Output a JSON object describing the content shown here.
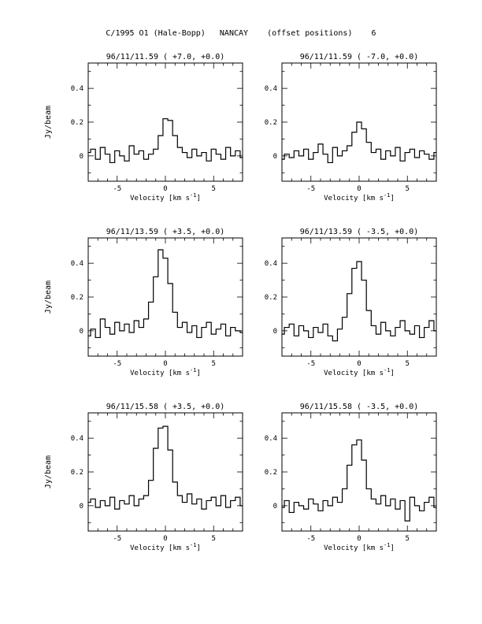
{
  "page": {
    "title": "C/1995 O1 (Hale-Bopp)   NANCAY    (offset positions)    6"
  },
  "chart_data": [
    {
      "type": "line",
      "title": "96/11/11.59  ( +7.0, +0.0)",
      "xlabel": "Velocity [km s",
      "xlabel_sup": "-1",
      "xlabel_end": "]",
      "ylabel": "Jy/beam",
      "xlim": [
        -8,
        8
      ],
      "ylim": [
        -0.15,
        0.55
      ],
      "xticks": [
        -5,
        0,
        5
      ],
      "yticks": [
        0,
        0.2,
        0.4
      ],
      "series": [
        {
          "x": [
            -8,
            -7.5,
            -7,
            -6.5,
            -6,
            -5.5,
            -5,
            -4.5,
            -4,
            -3.5,
            -3,
            -2.5,
            -2,
            -1.5,
            -1,
            -0.5,
            0,
            0.5,
            1,
            1.5,
            2,
            2.5,
            3,
            3.5,
            4,
            4.5,
            5,
            5.5,
            6,
            6.5,
            7,
            7.5,
            8
          ],
          "y": [
            0.02,
            0.04,
            -0.02,
            0.05,
            0.01,
            -0.04,
            0.03,
            0.0,
            -0.03,
            0.06,
            0.01,
            0.03,
            -0.02,
            0.01,
            0.04,
            0.12,
            0.22,
            0.21,
            0.12,
            0.05,
            0.02,
            -0.01,
            0.04,
            0.0,
            0.02,
            -0.03,
            0.04,
            0.01,
            -0.02,
            0.05,
            0.0,
            0.03,
            -0.01
          ]
        }
      ]
    },
    {
      "type": "line",
      "title": "96/11/11.59  ( -7.0, +0.0)",
      "xlabel": "Velocity [km s",
      "xlabel_sup": "-1",
      "xlabel_end": "]",
      "ylabel": "",
      "xlim": [
        -8,
        8
      ],
      "ylim": [
        -0.15,
        0.55
      ],
      "xticks": [
        -5,
        0,
        5
      ],
      "yticks": [
        0,
        0.2,
        0.4
      ],
      "series": [
        {
          "x": [
            -8,
            -7.5,
            -7,
            -6.5,
            -6,
            -5.5,
            -5,
            -4.5,
            -4,
            -3.5,
            -3,
            -2.5,
            -2,
            -1.5,
            -1,
            -0.5,
            0,
            0.5,
            1,
            1.5,
            2,
            2.5,
            3,
            3.5,
            4,
            4.5,
            5,
            5.5,
            6,
            6.5,
            7,
            7.5,
            8
          ],
          "y": [
            -0.02,
            0.01,
            -0.01,
            0.03,
            0.0,
            0.04,
            -0.02,
            0.02,
            0.07,
            0.01,
            -0.04,
            0.05,
            0.0,
            0.03,
            0.06,
            0.14,
            0.2,
            0.16,
            0.08,
            0.02,
            0.04,
            -0.02,
            0.03,
            0.0,
            0.05,
            -0.03,
            0.02,
            0.04,
            -0.01,
            0.03,
            0.01,
            -0.02,
            0.02
          ]
        }
      ]
    },
    {
      "type": "line",
      "title": "96/11/13.59  ( +3.5, +0.0)",
      "xlabel": "Velocity [km s",
      "xlabel_sup": "-1",
      "xlabel_end": "]",
      "ylabel": "Jy/beam",
      "xlim": [
        -8,
        8
      ],
      "ylim": [
        -0.15,
        0.55
      ],
      "xticks": [
        -5,
        0,
        5
      ],
      "yticks": [
        0,
        0.2,
        0.4
      ],
      "series": [
        {
          "x": [
            -8,
            -7.5,
            -7,
            -6.5,
            -6,
            -5.5,
            -5,
            -4.5,
            -4,
            -3.5,
            -3,
            -2.5,
            -2,
            -1.5,
            -1,
            -0.5,
            0,
            0.5,
            1,
            1.5,
            2,
            2.5,
            3,
            3.5,
            4,
            4.5,
            5,
            5.5,
            6,
            6.5,
            7,
            7.5,
            8
          ],
          "y": [
            -0.03,
            0.01,
            -0.04,
            0.07,
            0.02,
            -0.02,
            0.05,
            0.0,
            0.04,
            -0.01,
            0.06,
            0.02,
            0.07,
            0.17,
            0.32,
            0.48,
            0.43,
            0.28,
            0.11,
            0.02,
            0.05,
            -0.01,
            0.03,
            -0.04,
            0.02,
            0.05,
            -0.02,
            0.01,
            0.04,
            -0.03,
            0.02,
            0.0,
            -0.01
          ]
        }
      ]
    },
    {
      "type": "line",
      "title": "96/11/13.59  ( -3.5, +0.0)",
      "xlabel": "Velocity [km s",
      "xlabel_sup": "-1",
      "xlabel_end": "]",
      "ylabel": "",
      "xlim": [
        -8,
        8
      ],
      "ylim": [
        -0.15,
        0.55
      ],
      "xticks": [
        -5,
        0,
        5
      ],
      "yticks": [
        0,
        0.2,
        0.4
      ],
      "series": [
        {
          "x": [
            -8,
            -7.5,
            -7,
            -6.5,
            -6,
            -5.5,
            -5,
            -4.5,
            -4,
            -3.5,
            -3,
            -2.5,
            -2,
            -1.5,
            -1,
            -0.5,
            0,
            0.5,
            1,
            1.5,
            2,
            2.5,
            3,
            3.5,
            4,
            4.5,
            5,
            5.5,
            6,
            6.5,
            7,
            7.5,
            8
          ],
          "y": [
            -0.02,
            0.02,
            0.04,
            -0.03,
            0.03,
            0.0,
            -0.04,
            0.02,
            -0.01,
            0.04,
            -0.03,
            -0.06,
            0.01,
            0.08,
            0.22,
            0.37,
            0.41,
            0.3,
            0.12,
            0.03,
            -0.02,
            0.05,
            0.0,
            -0.03,
            0.02,
            0.06,
            0.0,
            -0.02,
            0.03,
            -0.04,
            0.02,
            0.06,
            0.0
          ]
        }
      ]
    },
    {
      "type": "line",
      "title": "96/11/15.58  ( +3.5, +0.0)",
      "xlabel": "Velocity [km s",
      "xlabel_sup": "-1",
      "xlabel_end": "]",
      "ylabel": "Jy/beam",
      "xlim": [
        -8,
        8
      ],
      "ylim": [
        -0.15,
        0.55
      ],
      "xticks": [
        -5,
        0,
        5
      ],
      "yticks": [
        0,
        0.2,
        0.4
      ],
      "series": [
        {
          "x": [
            -8,
            -7.5,
            -7,
            -6.5,
            -6,
            -5.5,
            -5,
            -4.5,
            -4,
            -3.5,
            -3,
            -2.5,
            -2,
            -1.5,
            -1,
            -0.5,
            0,
            0.5,
            1,
            1.5,
            2,
            2.5,
            3,
            3.5,
            4,
            4.5,
            5,
            5.5,
            6,
            6.5,
            7,
            7.5,
            8
          ],
          "y": [
            0.02,
            0.04,
            -0.01,
            0.03,
            0.0,
            0.05,
            -0.02,
            0.03,
            0.01,
            0.06,
            0.0,
            0.04,
            0.06,
            0.15,
            0.34,
            0.46,
            0.47,
            0.33,
            0.14,
            0.06,
            0.02,
            0.07,
            0.01,
            0.04,
            -0.02,
            0.03,
            0.05,
            0.0,
            0.06,
            -0.01,
            0.03,
            0.05,
            0.0
          ]
        }
      ]
    },
    {
      "type": "line",
      "title": "96/11/15.58  ( -3.5, +0.0)",
      "xlabel": "Velocity [km s",
      "xlabel_sup": "-1",
      "xlabel_end": "]",
      "ylabel": "",
      "xlim": [
        -8,
        8
      ],
      "ylim": [
        -0.15,
        0.55
      ],
      "xticks": [
        -5,
        0,
        5
      ],
      "yticks": [
        0,
        0.2,
        0.4
      ],
      "series": [
        {
          "x": [
            -8,
            -7.5,
            -7,
            -6.5,
            -6,
            -5.5,
            -5,
            -4.5,
            -4,
            -3.5,
            -3,
            -2.5,
            -2,
            -1.5,
            -1,
            -0.5,
            0,
            0.5,
            1,
            1.5,
            2,
            2.5,
            3,
            3.5,
            4,
            4.5,
            5,
            5.5,
            6,
            6.5,
            7,
            7.5,
            8
          ],
          "y": [
            -0.01,
            0.03,
            -0.04,
            0.02,
            0.0,
            -0.02,
            0.04,
            0.01,
            -0.03,
            0.03,
            0.0,
            0.05,
            0.02,
            0.1,
            0.24,
            0.36,
            0.39,
            0.27,
            0.1,
            0.04,
            0.01,
            0.06,
            0.0,
            0.04,
            -0.02,
            0.03,
            -0.09,
            0.05,
            0.0,
            -0.03,
            0.02,
            0.05,
            -0.01
          ]
        }
      ]
    }
  ]
}
